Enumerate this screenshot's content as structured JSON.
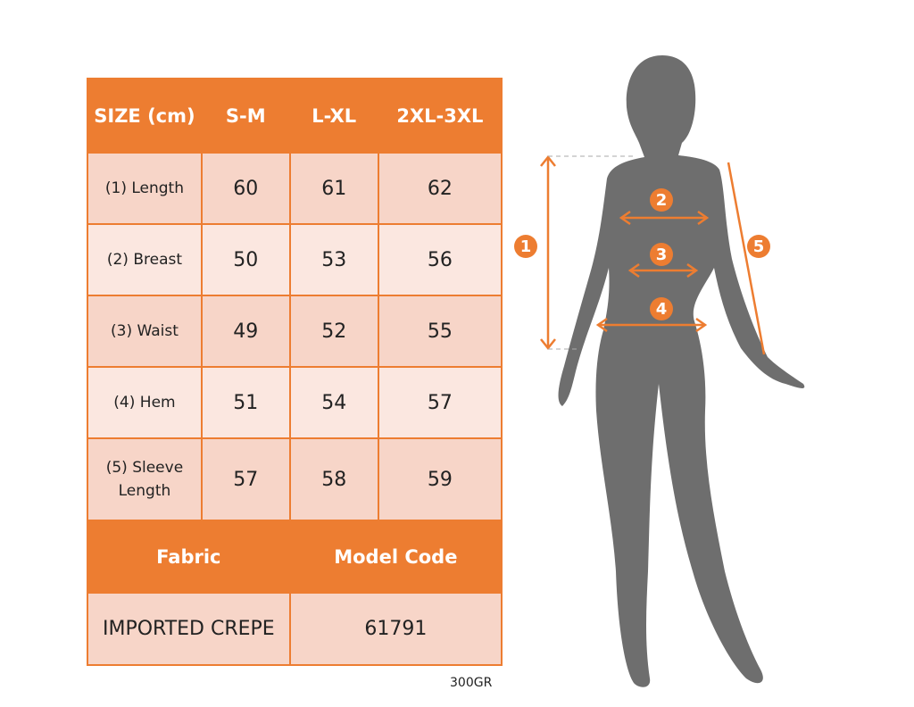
{
  "table": {
    "header": [
      "SIZE (cm)",
      "S-M",
      "L-XL",
      "2XL-3XL"
    ],
    "rows": [
      {
        "label": "(1) Length",
        "values": [
          "60",
          "61",
          "62"
        ]
      },
      {
        "label": "(2) Breast",
        "values": [
          "50",
          "53",
          "56"
        ]
      },
      {
        "label": "(3) Waist",
        "values": [
          "49",
          "52",
          "55"
        ]
      },
      {
        "label": "(4) Hem",
        "values": [
          "51",
          "54",
          "57"
        ]
      },
      {
        "label": "(5) Sleeve Length",
        "values": [
          "57",
          "58",
          "59"
        ]
      }
    ],
    "footer_header": [
      "Fabric",
      "Model Code"
    ],
    "footer_values": [
      "IMPORTED CREPE",
      "61791"
    ]
  },
  "note": "300GR",
  "markers": [
    "1",
    "2",
    "3",
    "4",
    "5"
  ],
  "colors": {
    "accent": "#ED7D31",
    "silhouette": "#6E6E6E"
  }
}
